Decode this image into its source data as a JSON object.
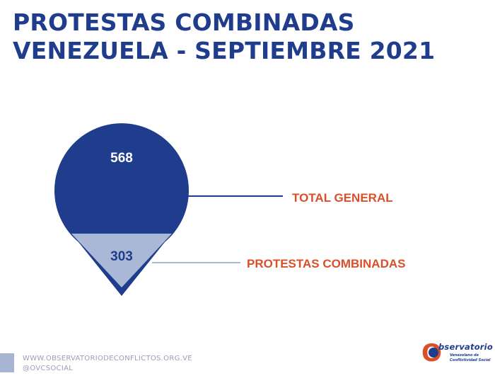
{
  "title_line1": "PROTESTAS COMBINADAS",
  "title_line2": "VENEZUELA - SEPTIEMBRE 2021",
  "chart_data": {
    "type": "area",
    "items": [
      {
        "label": "TOTAL GENERAL",
        "value": 568,
        "color": "#1f3d8c",
        "label_color": "#d94f2a"
      },
      {
        "label": "PROTESTAS COMBINADAS",
        "value": 303,
        "color": "#aab8d8",
        "label_color": "#d94f2a"
      }
    ]
  },
  "footer": {
    "url": "WWW.OBSERVATORIODECONFLICTOS.ORG.VE",
    "handle": "@OVCSOCIAL"
  },
  "logo": {
    "letter": "O",
    "word": "bservatorio",
    "line1": "Venezolano de",
    "line2": "Conflictividad Social"
  }
}
